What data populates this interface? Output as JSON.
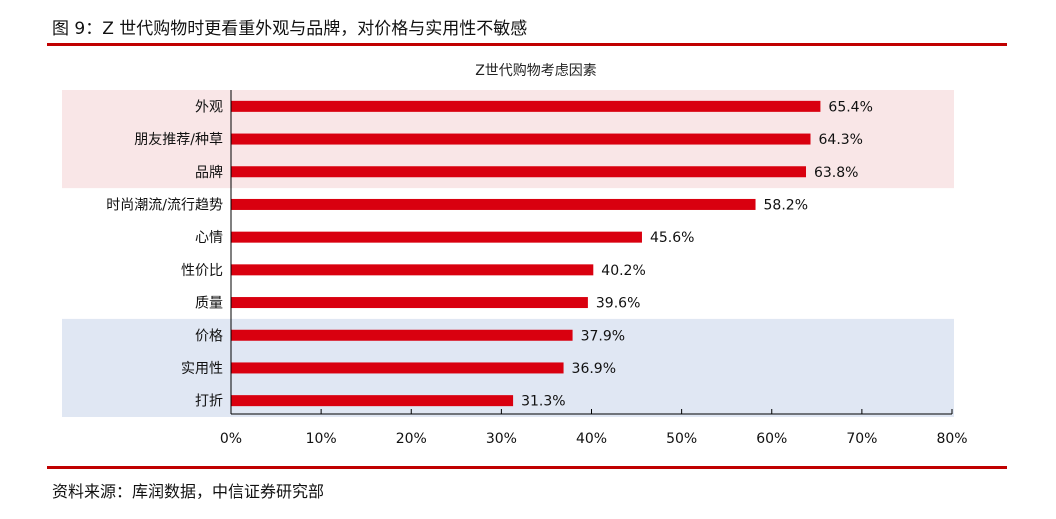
{
  "figure_title": "图 9：Z 世代购物时更看重外观与品牌，对价格与实用性不敏感",
  "source": "资料来源：库润数据，中信证券研究部",
  "colors": {
    "bar": "#d9000f",
    "band_top": "#f9e6e7",
    "band_bottom": "#e0e7f3",
    "rule": "#c00000"
  },
  "chart_data": {
    "type": "bar",
    "orientation": "horizontal",
    "title": "Z世代购物考虑因素",
    "xlabel": "",
    "ylabel": "",
    "xlim": [
      0,
      80
    ],
    "x_ticks": [
      "0%",
      "10%",
      "20%",
      "30%",
      "40%",
      "50%",
      "60%",
      "70%",
      "80%"
    ],
    "categories": [
      "外观",
      "朋友推荐/种草",
      "品牌",
      "时尚潮流/流行趋势",
      "心情",
      "性价比",
      "质量",
      "价格",
      "实用性",
      "打折"
    ],
    "values": [
      65.4,
      64.3,
      63.8,
      58.2,
      45.6,
      40.2,
      39.6,
      37.9,
      36.9,
      31.3
    ],
    "data_labels": [
      "65.4%",
      "64.3%",
      "63.8%",
      "58.2%",
      "45.6%",
      "40.2%",
      "39.6%",
      "37.9%",
      "36.9%",
      "31.3%"
    ],
    "highlight_bands": [
      {
        "categories": [
          "外观",
          "朋友推荐/种草",
          "品牌"
        ],
        "color": "#f9e6e7"
      },
      {
        "categories": [
          "价格",
          "实用性",
          "打折"
        ],
        "color": "#e0e7f3"
      }
    ],
    "grid": false,
    "legend": "none"
  }
}
